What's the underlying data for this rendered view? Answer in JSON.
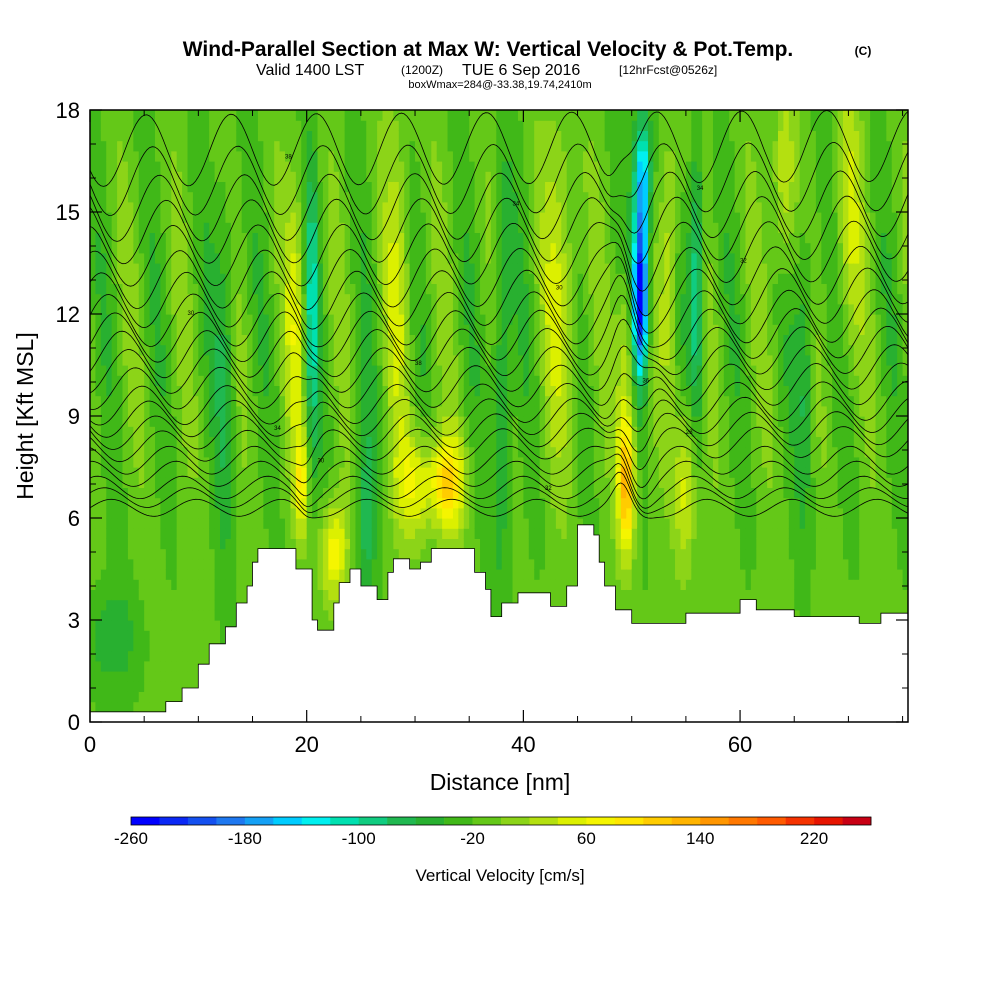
{
  "header": {
    "title_main": "Wind-Parallel Section at Max W: Vertical Velocity & Pot.Temp.",
    "title_mark": "(C)",
    "valid_pre": "Valid 1400 LST",
    "valid_utc": "(1200Z)",
    "valid_date": "TUE 6 Sep 2016",
    "forecast": "[12hrFcst@0526z]",
    "box_info": "boxWmax=284@-33.38,19.74,2410m"
  },
  "chart_data": {
    "type": "heatmap",
    "xlabel": "Distance [nm]",
    "ylabel": "Height [Kft MSL]",
    "xlim": [
      0,
      75.5
    ],
    "ylim": [
      0,
      18
    ],
    "x_ticks": [
      0,
      20,
      40,
      60
    ],
    "y_ticks": [
      0,
      3,
      6,
      9,
      12,
      15,
      18
    ],
    "x_tick_labels": [
      "0",
      "20",
      "40",
      "60"
    ],
    "y_tick_labels": [
      "0",
      "3",
      "6",
      "9",
      "12",
      "15",
      "18"
    ],
    "colorbar": {
      "label": "Vertical Velocity [cm/s]",
      "min": -260,
      "max": 260,
      "step": 20,
      "tick_values": [
        -260,
        -180,
        -100,
        -20,
        60,
        140,
        220
      ],
      "tick_labels": [
        "-260",
        "-180",
        "-100",
        "-20",
        "60",
        "140",
        "220"
      ],
      "colors": [
        "#0000ff",
        "#0a28f5",
        "#1450f0",
        "#1e78f0",
        "#14a0f5",
        "#00ccff",
        "#00f0f0",
        "#00e0b0",
        "#10cc80",
        "#20b850",
        "#28b030",
        "#40b818",
        "#64c818",
        "#8cd418",
        "#b4e010",
        "#dcf000",
        "#f5f500",
        "#ffe600",
        "#ffcc00",
        "#ffb400",
        "#ff9600",
        "#ff7800",
        "#ff5a00",
        "#f53200",
        "#e61400",
        "#c80014"
      ]
    },
    "wmax_cm_s": 284,
    "terrain_kft": [
      [
        0,
        0.3
      ],
      [
        7,
        0.3
      ],
      [
        7,
        0.6
      ],
      [
        8.5,
        0.6
      ],
      [
        8.5,
        1.0
      ],
      [
        10,
        1.0
      ],
      [
        10,
        1.7
      ],
      [
        11,
        1.7
      ],
      [
        11,
        2.3
      ],
      [
        12.5,
        2.3
      ],
      [
        12.5,
        2.8
      ],
      [
        13.5,
        2.8
      ],
      [
        13.5,
        3.5
      ],
      [
        14.5,
        3.5
      ],
      [
        14.5,
        4.0
      ],
      [
        15,
        4.0
      ],
      [
        15,
        4.7
      ],
      [
        15.5,
        4.7
      ],
      [
        15.5,
        5.1
      ],
      [
        19,
        5.1
      ],
      [
        19,
        4.5
      ],
      [
        20.5,
        4.5
      ],
      [
        20.5,
        3.0
      ],
      [
        21,
        3.0
      ],
      [
        21,
        2.7
      ],
      [
        22.5,
        2.7
      ],
      [
        22.5,
        3.5
      ],
      [
        23,
        3.5
      ],
      [
        23,
        4.1
      ],
      [
        24,
        4.1
      ],
      [
        24,
        4.5
      ],
      [
        25,
        4.5
      ],
      [
        25,
        4.0
      ],
      [
        26.5,
        4.0
      ],
      [
        26.5,
        3.6
      ],
      [
        27.5,
        3.6
      ],
      [
        27.5,
        4.4
      ],
      [
        28,
        4.4
      ],
      [
        28,
        4.8
      ],
      [
        29.5,
        4.8
      ],
      [
        29.5,
        4.5
      ],
      [
        30.5,
        4.5
      ],
      [
        30.5,
        4.7
      ],
      [
        31.5,
        4.7
      ],
      [
        31.5,
        5.1
      ],
      [
        33,
        5.1
      ],
      [
        33,
        5.1
      ],
      [
        35.5,
        5.1
      ],
      [
        35.5,
        4.4
      ],
      [
        36.5,
        4.4
      ],
      [
        36.5,
        3.9
      ],
      [
        37,
        3.9
      ],
      [
        37,
        3.1
      ],
      [
        38,
        3.1
      ],
      [
        38,
        3.5
      ],
      [
        39.5,
        3.5
      ],
      [
        39.5,
        3.8
      ],
      [
        42.5,
        3.8
      ],
      [
        42.5,
        3.4
      ],
      [
        44,
        3.4
      ],
      [
        44,
        4.0
      ],
      [
        45,
        4.0
      ],
      [
        45,
        5.8
      ],
      [
        46.5,
        5.8
      ],
      [
        46.5,
        5.5
      ],
      [
        47,
        5.5
      ],
      [
        47,
        4.7
      ],
      [
        47.5,
        4.7
      ],
      [
        47.5,
        4.0
      ],
      [
        48.5,
        4.0
      ],
      [
        48.5,
        3.3
      ],
      [
        50,
        3.3
      ],
      [
        50,
        2.9
      ],
      [
        55,
        2.9
      ],
      [
        55,
        3.2
      ],
      [
        60,
        3.2
      ],
      [
        60,
        3.6
      ],
      [
        61.5,
        3.6
      ],
      [
        61.5,
        3.3
      ],
      [
        65,
        3.3
      ],
      [
        65,
        3.1
      ],
      [
        71,
        3.1
      ],
      [
        71,
        2.9
      ],
      [
        73,
        2.9
      ],
      [
        73,
        3.2
      ],
      [
        75.5,
        3.2
      ]
    ],
    "theta_contours_c": [
      {
        "base_kft": 6.3,
        "label": ""
      },
      {
        "base_kft": 6.6,
        "label": ""
      },
      {
        "base_kft": 6.9,
        "label": "32"
      },
      {
        "base_kft": 7.3,
        "label": ""
      },
      {
        "base_kft": 7.7,
        "label": "30"
      },
      {
        "base_kft": 8.1,
        "label": ""
      },
      {
        "base_kft": 8.5,
        "label": "28"
      },
      {
        "base_kft": 8.9,
        "label": "34"
      },
      {
        "base_kft": 9.3,
        "label": ""
      },
      {
        "base_kft": 9.8,
        "label": "36"
      },
      {
        "base_kft": 10.3,
        "label": ""
      },
      {
        "base_kft": 10.8,
        "label": "38"
      },
      {
        "base_kft": 11.3,
        "label": ""
      },
      {
        "base_kft": 11.8,
        "label": "30"
      },
      {
        "base_kft": 12.4,
        "label": ""
      },
      {
        "base_kft": 13.0,
        "label": "30"
      },
      {
        "base_kft": 13.7,
        "label": "32"
      },
      {
        "base_kft": 14.4,
        "label": ""
      },
      {
        "base_kft": 15.1,
        "label": "34"
      },
      {
        "base_kft": 15.9,
        "label": "34"
      },
      {
        "base_kft": 16.8,
        "label": "38"
      }
    ]
  }
}
